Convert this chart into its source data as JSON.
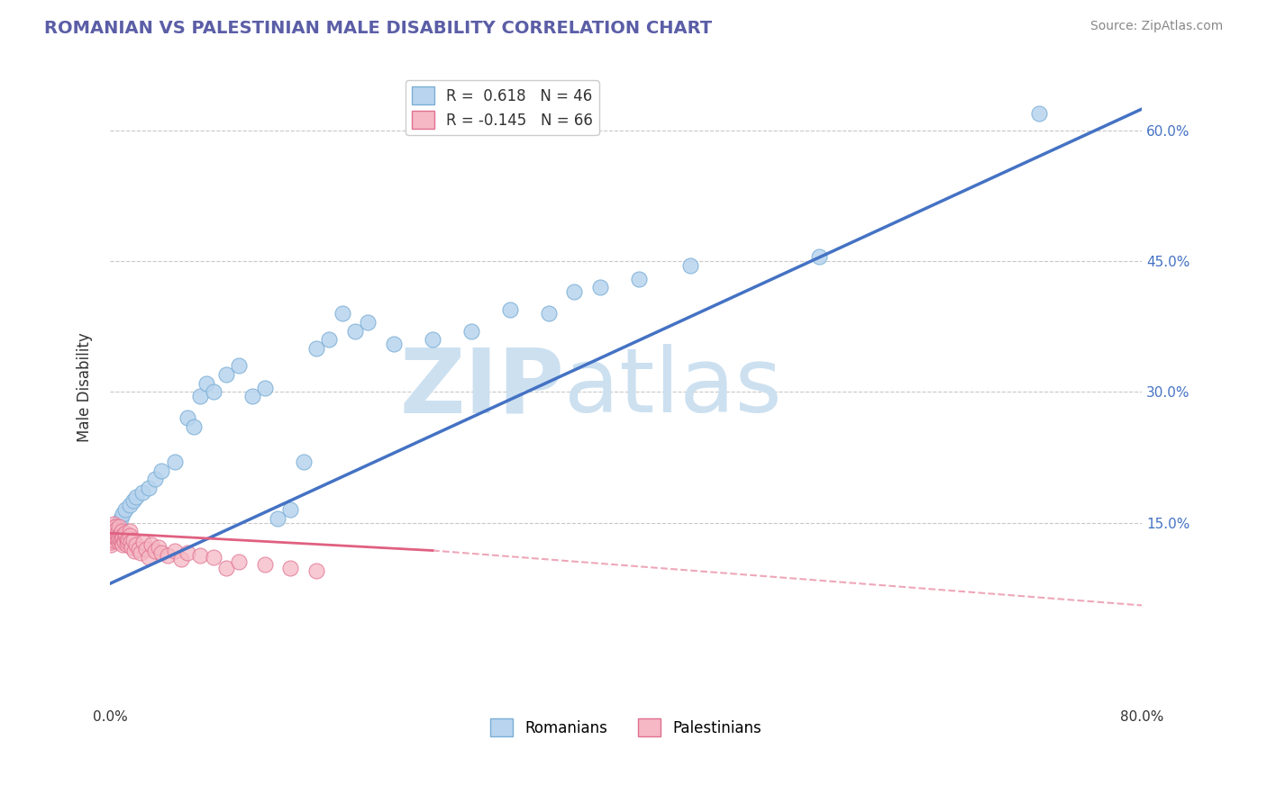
{
  "title": "ROMANIAN VS PALESTINIAN MALE DISABILITY CORRELATION CHART",
  "source": "Source: ZipAtlas.com",
  "ylabel_label": "Male Disability",
  "xmin": 0.0,
  "xmax": 0.8,
  "ymin": -0.06,
  "ymax": 0.67,
  "grid_color": "#c8c8c8",
  "background_color": "#ffffff",
  "romanian_color": "#b8d4ee",
  "romanian_edge": "#7bafd6",
  "palestinian_color": "#f5b8c4",
  "palestinian_edge": "#e07090",
  "R_romanian": 0.618,
  "N_romanian": 46,
  "R_palestinian": -0.145,
  "N_palestinian": 66,
  "line_romanian_color": "#4472c4",
  "line_palestinian_color": "#e06080",
  "legend_label_romanian": "Romanians",
  "legend_label_palestinian": "Palestinians",
  "watermark_zip": "ZIP",
  "watermark_atlas": "atlas",
  "watermark_color": "#cce0f0",
  "title_color": "#5b5ea6",
  "source_color": "#888888",
  "ytick_color": "#4472c4",
  "romanian_x": [
    0.001,
    0.002,
    0.003,
    0.004,
    0.005,
    0.006,
    0.007,
    0.008,
    0.01,
    0.012,
    0.015,
    0.018,
    0.02,
    0.025,
    0.03,
    0.035,
    0.04,
    0.05,
    0.06,
    0.065,
    0.07,
    0.075,
    0.08,
    0.09,
    0.1,
    0.11,
    0.12,
    0.13,
    0.14,
    0.15,
    0.16,
    0.17,
    0.18,
    0.19,
    0.2,
    0.22,
    0.25,
    0.28,
    0.31,
    0.34,
    0.36,
    0.38,
    0.41,
    0.45,
    0.55,
    0.72
  ],
  "romanian_y": [
    0.135,
    0.14,
    0.138,
    0.142,
    0.145,
    0.148,
    0.15,
    0.155,
    0.16,
    0.165,
    0.17,
    0.175,
    0.18,
    0.185,
    0.19,
    0.2,
    0.21,
    0.22,
    0.27,
    0.26,
    0.295,
    0.31,
    0.3,
    0.32,
    0.33,
    0.295,
    0.305,
    0.155,
    0.165,
    0.22,
    0.35,
    0.36,
    0.39,
    0.37,
    0.38,
    0.355,
    0.36,
    0.37,
    0.395,
    0.39,
    0.415,
    0.42,
    0.43,
    0.445,
    0.455,
    0.62
  ],
  "palestinian_x": [
    0.001,
    0.001,
    0.001,
    0.001,
    0.002,
    0.002,
    0.002,
    0.002,
    0.003,
    0.003,
    0.003,
    0.004,
    0.004,
    0.004,
    0.005,
    0.005,
    0.005,
    0.006,
    0.006,
    0.006,
    0.007,
    0.007,
    0.007,
    0.008,
    0.008,
    0.008,
    0.009,
    0.009,
    0.01,
    0.01,
    0.01,
    0.011,
    0.011,
    0.012,
    0.012,
    0.013,
    0.013,
    0.014,
    0.014,
    0.015,
    0.015,
    0.016,
    0.017,
    0.018,
    0.019,
    0.02,
    0.022,
    0.024,
    0.026,
    0.028,
    0.03,
    0.032,
    0.035,
    0.038,
    0.04,
    0.045,
    0.05,
    0.055,
    0.06,
    0.07,
    0.08,
    0.09,
    0.1,
    0.12,
    0.14,
    0.16
  ],
  "palestinian_y": [
    0.125,
    0.13,
    0.128,
    0.132,
    0.135,
    0.14,
    0.138,
    0.142,
    0.145,
    0.148,
    0.13,
    0.135,
    0.14,
    0.145,
    0.132,
    0.138,
    0.142,
    0.13,
    0.135,
    0.14,
    0.128,
    0.132,
    0.145,
    0.138,
    0.135,
    0.13,
    0.128,
    0.14,
    0.135,
    0.132,
    0.125,
    0.13,
    0.128,
    0.135,
    0.138,
    0.13,
    0.125,
    0.128,
    0.132,
    0.14,
    0.135,
    0.128,
    0.122,
    0.13,
    0.118,
    0.125,
    0.12,
    0.115,
    0.128,
    0.12,
    0.11,
    0.125,
    0.118,
    0.122,
    0.115,
    0.112,
    0.118,
    0.108,
    0.115,
    0.112,
    0.11,
    0.098,
    0.105,
    0.102,
    0.098,
    0.095
  ],
  "line_romanian_x0": 0.0,
  "line_romanian_y0": 0.08,
  "line_romanian_x1": 0.8,
  "line_romanian_y1": 0.625,
  "line_palestinian_x0": 0.0,
  "line_palestinian_y0": 0.138,
  "line_palestinian_solid_end": 0.25,
  "line_palestinian_solid_y_end": 0.118,
  "line_palestinian_x1": 0.8,
  "line_palestinian_y1": 0.055
}
